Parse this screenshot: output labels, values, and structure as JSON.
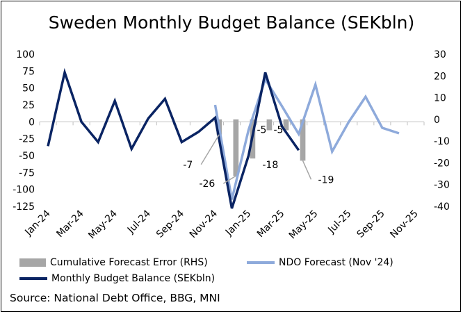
{
  "chart_data": {
    "type": "line+bar",
    "title": "Sweden Monthly Budget Balance (SEKbln)",
    "categories": [
      "Jan-24",
      "Feb-24",
      "Mar-24",
      "Apr-24",
      "May-24",
      "Jun-24",
      "Jul-24",
      "Aug-24",
      "Sep-24",
      "Oct-24",
      "Nov-24",
      "Dec-24",
      "Jan-25",
      "Feb-25",
      "Mar-25",
      "Apr-25",
      "May-25",
      "Jun-25",
      "Jul-25",
      "Aug-25",
      "Sep-25",
      "Oct-25",
      "Nov-25"
    ],
    "x_tick_labels": [
      "Jan-24",
      "Mar-24",
      "May-24",
      "Jul-24",
      "Sep-24",
      "Nov-24",
      "Jan-25",
      "Mar-25",
      "May-25",
      "Jul-25",
      "Sep-25",
      "Nov-25"
    ],
    "left_axis": {
      "ylim": [
        -125,
        100
      ],
      "ticks": [
        "100",
        "75",
        "50",
        "25",
        "0",
        "-25",
        "-50",
        "-75",
        "-100",
        "-125"
      ]
    },
    "right_axis": {
      "ylim": [
        -40,
        30
      ],
      "ticks": [
        "30",
        "20",
        "10",
        "0",
        "-10",
        "-20",
        "-30",
        "-40"
      ]
    },
    "series": [
      {
        "name": "Monthly Budget Balance (SEKbln)",
        "axis": "left",
        "color": "#0a2463",
        "values": [
          -36,
          73,
          0,
          -30,
          31,
          -40,
          5,
          34,
          -30,
          -15,
          6,
          -128,
          -50,
          73,
          -7,
          -42,
          null,
          null,
          null,
          null,
          null,
          null,
          null
        ]
      },
      {
        "name": "NDO Forecast (Nov '24)",
        "axis": "left",
        "color": "#8eaadb",
        "values": [
          null,
          null,
          null,
          null,
          null,
          null,
          null,
          null,
          null,
          null,
          25,
          -115,
          -12,
          63,
          23,
          -18,
          55,
          -44,
          0,
          37,
          -9,
          -17,
          null
        ]
      },
      {
        "name": "Cumulative Forecast Error (RHS)",
        "axis": "right",
        "type": "bar",
        "color": "#a6a6a6",
        "values": [
          null,
          null,
          null,
          null,
          null,
          null,
          null,
          null,
          null,
          null,
          -7,
          -26,
          -18,
          -5,
          -5,
          -19,
          null,
          null,
          null,
          null,
          null,
          null,
          null
        ]
      }
    ],
    "data_labels": [
      {
        "index": 10,
        "text": "-7"
      },
      {
        "index": 11,
        "text": "-26"
      },
      {
        "index": 12,
        "text": "-18"
      },
      {
        "index": 13,
        "text": "-5"
      },
      {
        "index": 14,
        "text": "-5"
      },
      {
        "index": 15,
        "text": "-19"
      }
    ],
    "legend": [
      {
        "label": "Cumulative Forecast Error (RHS)",
        "kind": "bar"
      },
      {
        "label": "NDO Forecast (Nov '24)",
        "kind": "line"
      },
      {
        "label": "Monthly Budget Balance (SEKbln)",
        "kind": "line"
      }
    ]
  },
  "source": "Source: National Debt Office, BBG, MNI"
}
